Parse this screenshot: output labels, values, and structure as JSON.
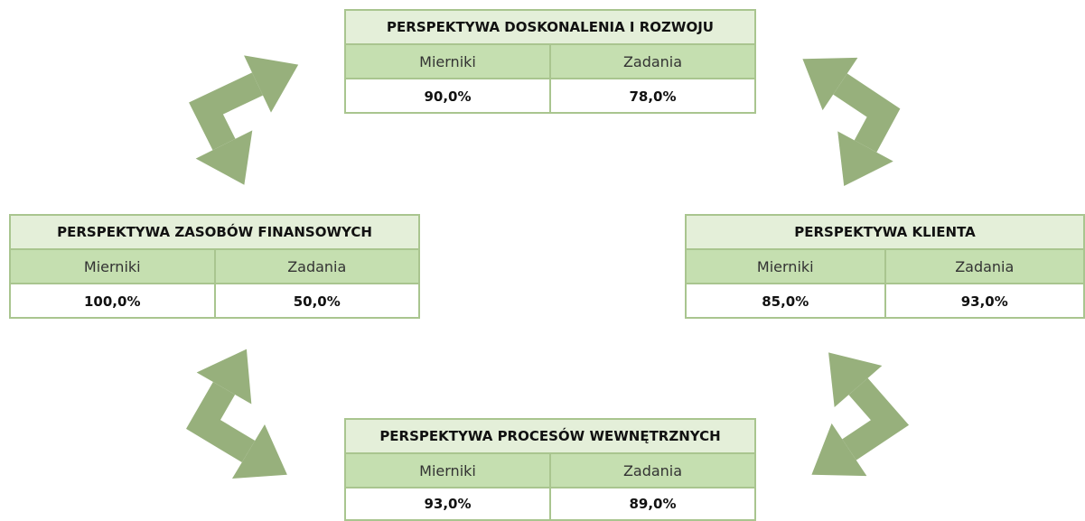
{
  "boxes": [
    {
      "title": "PERSPEKTYWA DOSKONALENIA I ROZWOJU",
      "columns": [
        "Mierniki",
        "Zadania"
      ],
      "values": [
        "90,0%",
        "78,0%"
      ]
    },
    {
      "title": "PERSPEKTYWA ZASOBÓW FINANSOWYCH",
      "columns": [
        "Mierniki",
        "Zadania"
      ],
      "values": [
        "100,0%",
        "50,0%"
      ]
    },
    {
      "title": "PERSPEKTYWA KLIENTA",
      "columns": [
        "Mierniki",
        "Zadania"
      ],
      "values": [
        "85,0%",
        "93,0%"
      ]
    },
    {
      "title": "PERSPEKTYWA PROCESÓW WEWNĘTRZNYCH",
      "columns": [
        "Mierniki",
        "Zadania"
      ],
      "values": [
        "93,0%",
        "89,0%"
      ]
    }
  ]
}
